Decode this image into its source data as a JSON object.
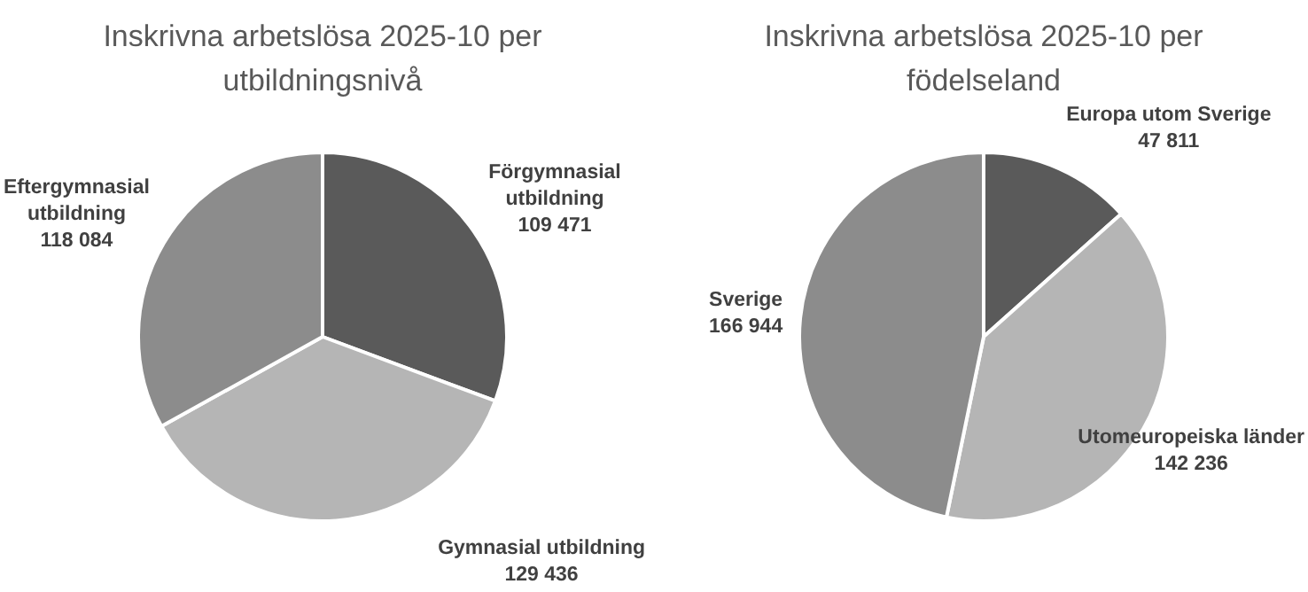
{
  "chart_data": [
    {
      "type": "pie",
      "title": "Inskrivna arbetslösa 2025-10 per utbildningsnivå",
      "categories": [
        "Förgymnasial utbildning",
        "Gymnasial utbildning",
        "Eftergymnasial utbildning"
      ],
      "values": [
        109471,
        129436,
        118084
      ],
      "value_labels": [
        "109 471",
        "129 436",
        "118 084"
      ],
      "colors": [
        "#5a5a5a",
        "#b5b5b5",
        "#8c8c8c"
      ]
    },
    {
      "type": "pie",
      "title": "Inskrivna arbetslösa 2025-10 per födelseland",
      "categories": [
        "Europa utom Sverige",
        "Utomeuropeiska länder",
        "Sverige"
      ],
      "values": [
        47811,
        142236,
        166944
      ],
      "value_labels": [
        "47 811",
        "142 236",
        "166 944"
      ],
      "colors": [
        "#5a5a5a",
        "#b5b5b5",
        "#8c8c8c"
      ]
    }
  ]
}
